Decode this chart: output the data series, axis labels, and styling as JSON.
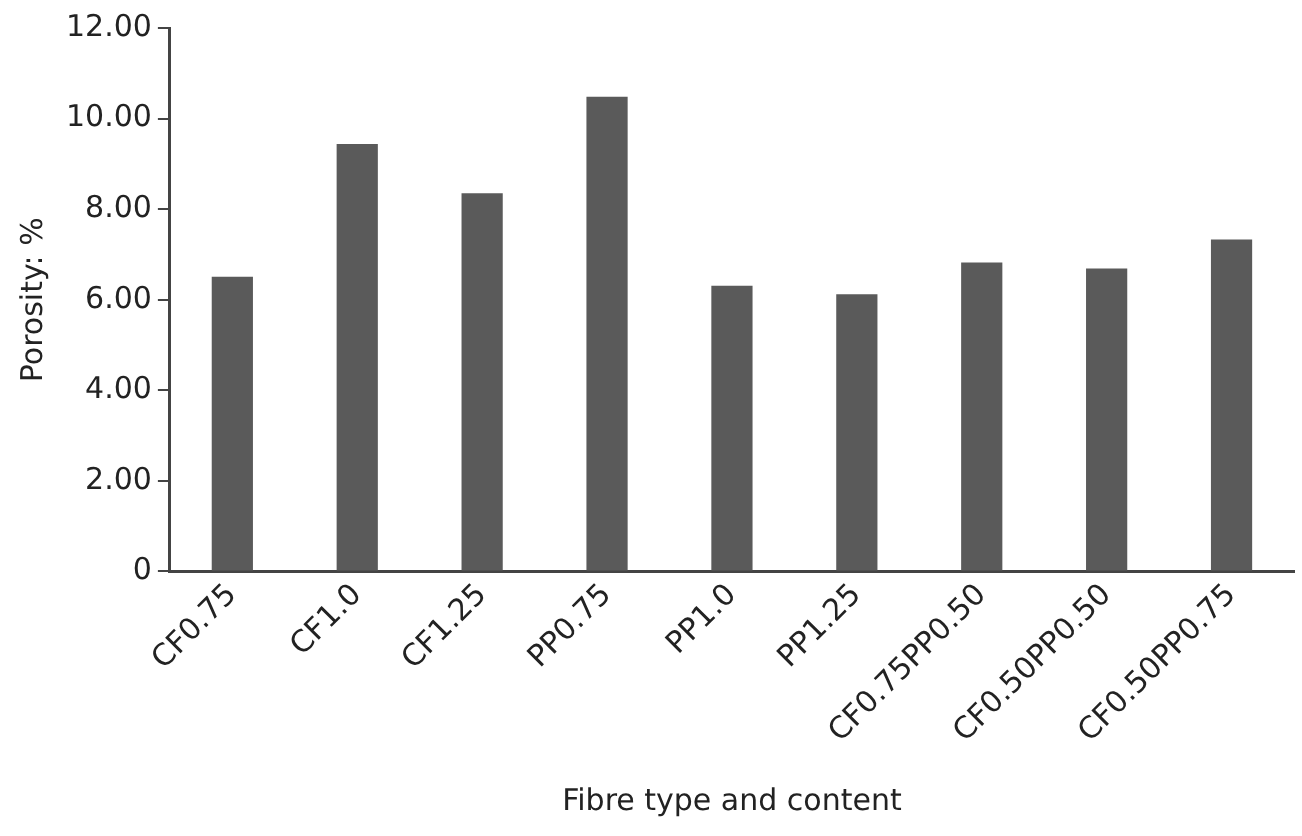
{
  "chart_data": {
    "type": "bar",
    "xlabel": "Fibre type and content",
    "ylabel": "Porosity: %",
    "categories": [
      "CF0.75",
      "CF1.0",
      "CF1.25",
      "PP0.75",
      "PP1.0",
      "PP1.25",
      "CF0.75PP0.50",
      "CF0.50PP0.50",
      "CF0.50PP0.75"
    ],
    "values": [
      6.51,
      9.44,
      8.35,
      10.48,
      6.31,
      6.12,
      6.82,
      6.69,
      7.33
    ],
    "color": "#5a5a5a",
    "ylim": [
      0,
      12
    ],
    "yticks": [
      {
        "value": 0,
        "label": "0"
      },
      {
        "value": 2,
        "label": "2.00"
      },
      {
        "value": 4,
        "label": "4.00"
      },
      {
        "value": 6,
        "label": "6.00"
      },
      {
        "value": 8,
        "label": "8.00"
      },
      {
        "value": 10,
        "label": "10.00"
      },
      {
        "value": 12,
        "label": "12.00"
      }
    ],
    "grid": false,
    "legend": false
  }
}
